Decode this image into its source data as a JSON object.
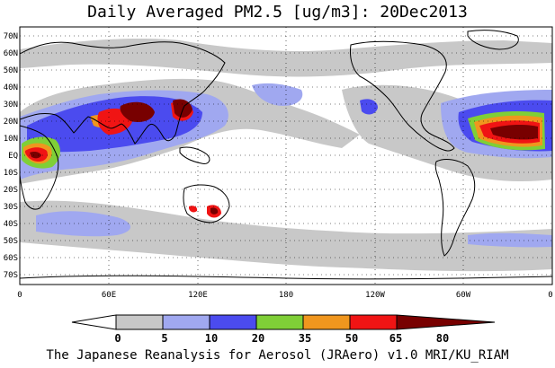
{
  "title": "Daily Averaged PM2.5 [ug/m3]: 20Dec2013",
  "footer": "The Japanese Reanalysis for Aerosol (JRAero) v1.0 MRI/KU_RIAM",
  "map": {
    "projection": "equirectangular",
    "lon_range": [
      0,
      360
    ],
    "lat_range": [
      -75,
      75
    ],
    "lat_ticks": [
      "70N",
      "60N",
      "50N",
      "40N",
      "30N",
      "20N",
      "10N",
      "EQ",
      "10S",
      "20S",
      "30S",
      "40S",
      "50S",
      "60S",
      "70S"
    ],
    "lon_ticks": [
      "0",
      "60E",
      "120E",
      "180",
      "120W",
      "60W",
      "0"
    ],
    "grid": "dotted"
  },
  "legend": {
    "levels": [
      "0",
      "5",
      "10",
      "20",
      "35",
      "50",
      "65",
      "80"
    ],
    "colors": [
      "#ffffff",
      "#c8c8c8",
      "#a0a8f0",
      "#4b4bef",
      "#7fcf37",
      "#f0961e",
      "#f01414",
      "#780000"
    ]
  }
}
